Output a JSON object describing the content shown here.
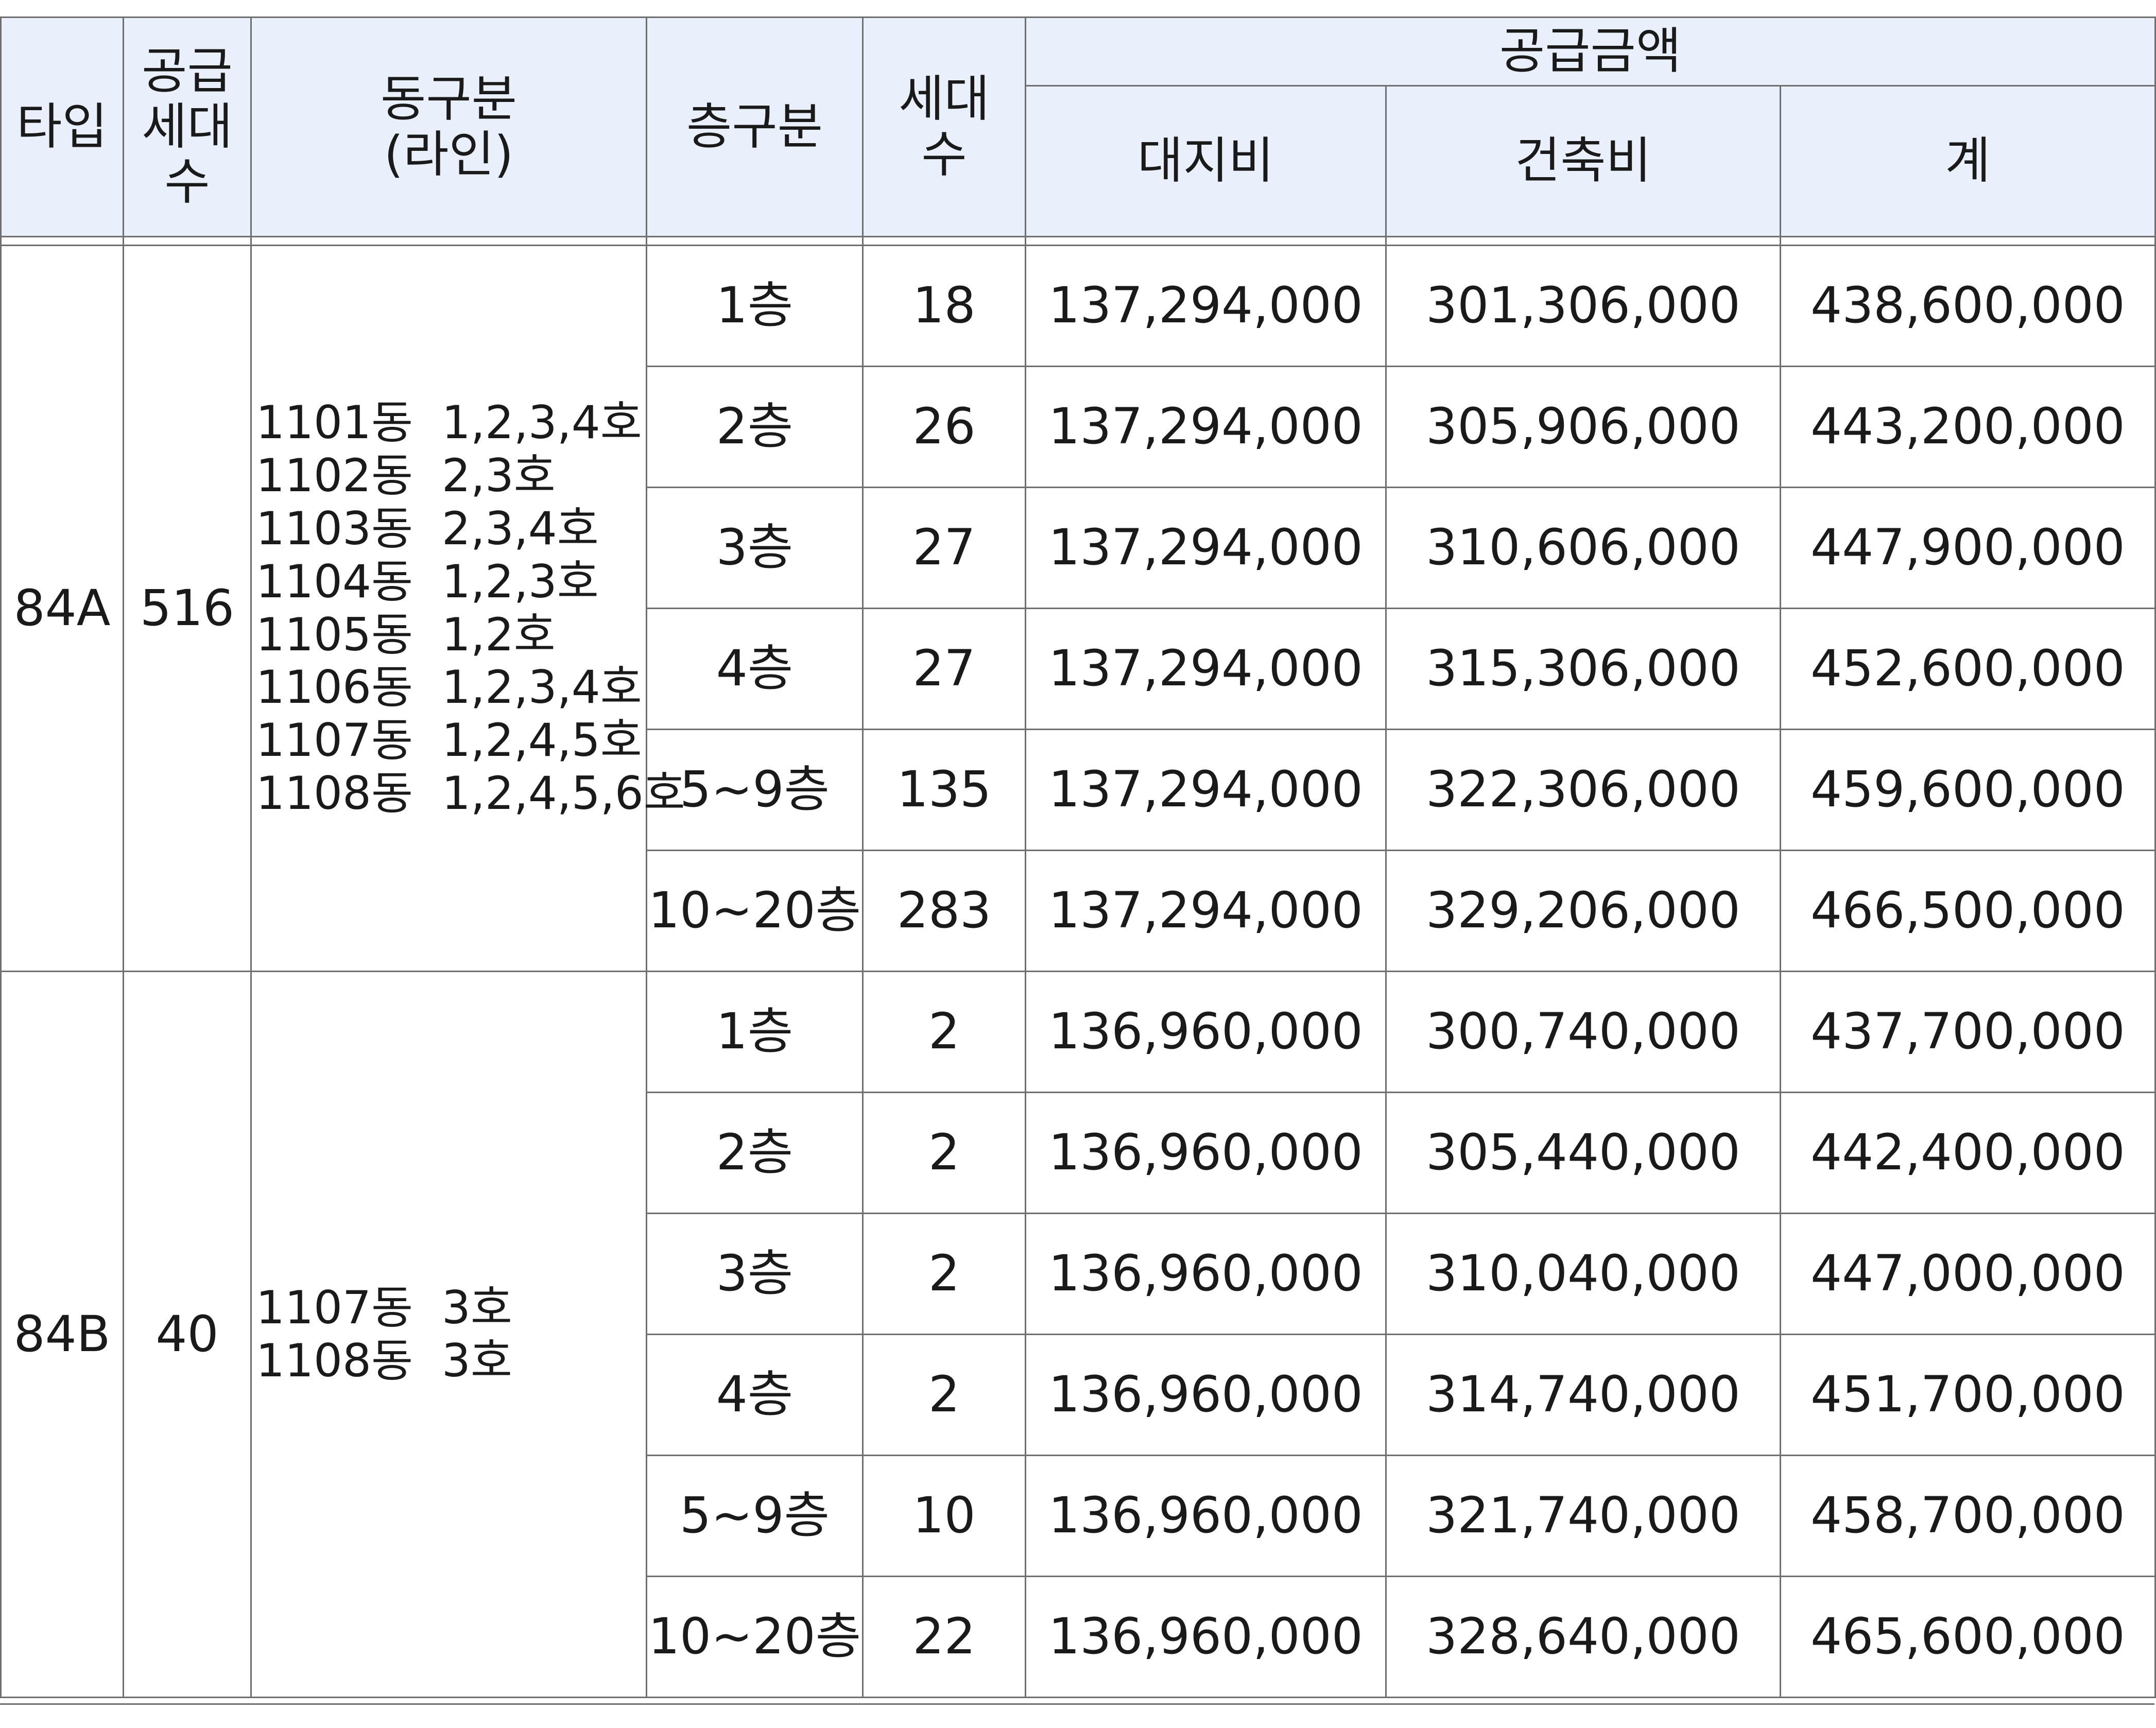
{
  "headers": {
    "type": "타입",
    "supply_units": [
      "공급",
      "세대",
      "수"
    ],
    "building": [
      "동구분",
      "(라인)"
    ],
    "floor": "층구분",
    "units": [
      "세대",
      "수"
    ],
    "supply_amount": "공급금액",
    "land": "대지비",
    "construction": "건축비",
    "total": "계"
  },
  "groups": [
    {
      "type": "84A",
      "supply_units": "516",
      "lines": [
        "1101동  1,2,3,4호",
        "1102동  2,3호",
        "1103동  2,3,4호",
        "1104동  1,2,3호",
        "1105동  1,2호",
        "1106동  1,2,3,4호",
        "1107동  1,2,4,5호",
        "1108동  1,2,4,5,6호"
      ],
      "rows": [
        {
          "floor": "1층",
          "units": "18",
          "land": "137,294,000",
          "construction": "301,306,000",
          "total": "438,600,000"
        },
        {
          "floor": "2층",
          "units": "26",
          "land": "137,294,000",
          "construction": "305,906,000",
          "total": "443,200,000"
        },
        {
          "floor": "3층",
          "units": "27",
          "land": "137,294,000",
          "construction": "310,606,000",
          "total": "447,900,000"
        },
        {
          "floor": "4층",
          "units": "27",
          "land": "137,294,000",
          "construction": "315,306,000",
          "total": "452,600,000"
        },
        {
          "floor": "5~9층",
          "units": "135",
          "land": "137,294,000",
          "construction": "322,306,000",
          "total": "459,600,000"
        },
        {
          "floor": "10~20층",
          "units": "283",
          "land": "137,294,000",
          "construction": "329,206,000",
          "total": "466,500,000"
        }
      ]
    },
    {
      "type": "84B",
      "supply_units": "40",
      "lines": [
        "1107동  3호",
        "1108동  3호"
      ],
      "rows": [
        {
          "floor": "1층",
          "units": "2",
          "land": "136,960,000",
          "construction": "300,740,000",
          "total": "437,700,000"
        },
        {
          "floor": "2층",
          "units": "2",
          "land": "136,960,000",
          "construction": "305,440,000",
          "total": "442,400,000"
        },
        {
          "floor": "3층",
          "units": "2",
          "land": "136,960,000",
          "construction": "310,040,000",
          "total": "447,000,000"
        },
        {
          "floor": "4층",
          "units": "2",
          "land": "136,960,000",
          "construction": "314,740,000",
          "total": "451,700,000"
        },
        {
          "floor": "5~9층",
          "units": "10",
          "land": "136,960,000",
          "construction": "321,740,000",
          "total": "458,700,000"
        },
        {
          "floor": "10~20층",
          "units": "22",
          "land": "136,960,000",
          "construction": "328,640,000",
          "total": "465,600,000"
        }
      ]
    }
  ]
}
